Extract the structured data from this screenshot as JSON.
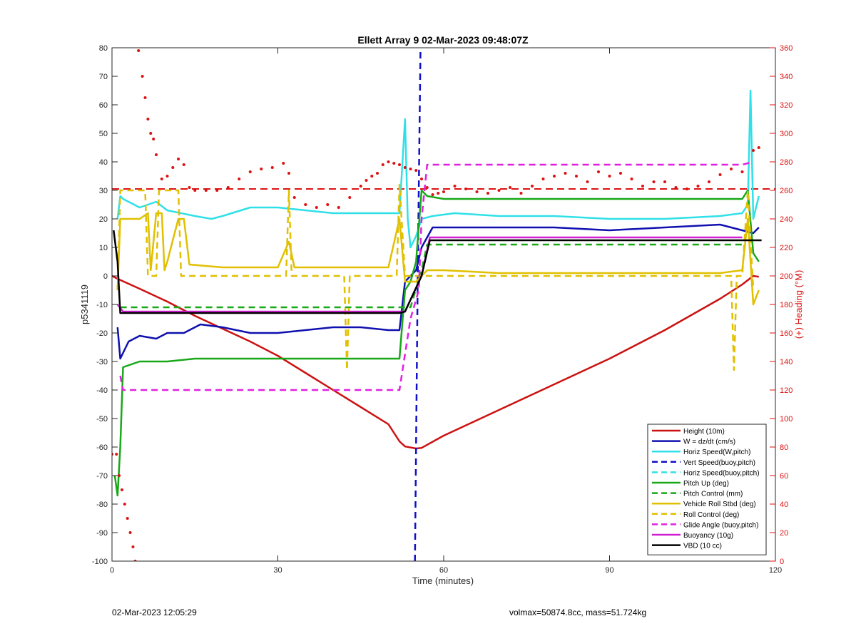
{
  "chart_data": {
    "type": "line",
    "title": "Ellett Array 9 02-Mar-2023 09:48:07Z",
    "xlabel": "Time (minutes)",
    "ylabel_left": "p5341119",
    "ylabel_right": "(+) Heading (°M)",
    "xlim": [
      0,
      120
    ],
    "ylim_left": [
      -100,
      80
    ],
    "ylim_right": [
      0,
      360
    ],
    "xticks": [
      0,
      30,
      60,
      90,
      120
    ],
    "yticks_left": [
      -100,
      -90,
      -80,
      -70,
      -60,
      -50,
      -40,
      -30,
      -20,
      -10,
      0,
      10,
      20,
      30,
      40,
      50,
      60,
      70,
      80
    ],
    "yticks_right": [
      0,
      20,
      40,
      60,
      80,
      100,
      120,
      140,
      160,
      180,
      200,
      220,
      240,
      260,
      280,
      300,
      320,
      340,
      360
    ],
    "grid": false,
    "legend_position": "bottom-right",
    "series": [
      {
        "name": "Height (10m)",
        "color": "#cc1111",
        "style": "solid",
        "axis": "left",
        "x": [
          0,
          1,
          5,
          10,
          15,
          20,
          25,
          30,
          35,
          40,
          45,
          50,
          52,
          53,
          55,
          56,
          60,
          70,
          80,
          90,
          100,
          110,
          114,
          116,
          117
        ],
        "y": [
          0,
          -1,
          -4.5,
          -9,
          -14,
          -18.5,
          -23,
          -28,
          -34,
          -40,
          -46,
          -52,
          -58,
          -59.8,
          -60.5,
          -60.3,
          -56,
          -47,
          -38,
          -29,
          -19,
          -8,
          -3,
          0,
          -0.3
        ]
      },
      {
        "name": "W = dz/dt (cm/s)",
        "color": "#1010b0",
        "style": "solid",
        "axis": "left",
        "x": [
          1,
          1.5,
          3,
          5,
          8,
          10,
          13,
          16,
          20,
          25,
          30,
          35,
          40,
          45,
          50,
          52,
          53,
          55,
          56,
          58,
          62,
          70,
          80,
          90,
          100,
          110,
          114,
          116,
          117
        ],
        "y": [
          -18,
          -29,
          -23,
          -21,
          -22,
          -20,
          -20,
          -17,
          -18,
          -20,
          -20,
          -19,
          -18,
          -18,
          -19,
          -19,
          -2,
          2,
          10,
          17,
          17,
          17,
          17,
          16,
          17,
          18,
          16,
          15,
          17
        ]
      },
      {
        "name": "Horiz Speed(W,pitch)",
        "color": "#30e0e8",
        "style": "solid",
        "axis": "left",
        "x": [
          1,
          1.5,
          2,
          5,
          8,
          10,
          15,
          18,
          20,
          25,
          30,
          35,
          40,
          45,
          50,
          52,
          53,
          53.5,
          54,
          55,
          56,
          58,
          62,
          70,
          80,
          90,
          100,
          110,
          114,
          115,
          115.5,
          116,
          117
        ],
        "y": [
          20,
          28,
          27,
          24,
          26,
          23,
          21,
          20,
          21,
          24,
          24,
          23,
          22,
          22,
          22,
          22,
          55,
          20,
          10,
          14,
          20,
          21,
          22,
          21,
          21,
          20,
          20,
          21,
          22,
          25,
          65,
          20,
          28
        ]
      },
      {
        "name": "Vert Speed(buoy,pitch)",
        "color": "#1010c8",
        "style": "dashed",
        "axis": "left",
        "x": [
          54.8,
          55.3,
          55.8
        ],
        "y": [
          -100,
          0,
          80
        ]
      },
      {
        "name": "Horiz Speed(buoy,pitch)",
        "color": "#30e0e8",
        "style": "dashed",
        "axis": "left",
        "x": [],
        "y": []
      },
      {
        "name": "Pitch Up (deg)",
        "color": "#18a818",
        "style": "solid",
        "axis": "left",
        "x": [
          0.5,
          1,
          1.5,
          2,
          5,
          10,
          15,
          20,
          25,
          30,
          40,
          50,
          52,
          53,
          54,
          55,
          56,
          57,
          60,
          70,
          80,
          90,
          100,
          110,
          114,
          115,
          116,
          117
        ],
        "y": [
          -70,
          -77,
          -60,
          -32,
          -30,
          -30,
          -29,
          -29,
          -29,
          -29,
          -29,
          -29,
          -29,
          -5,
          -2,
          5,
          30,
          28,
          27,
          27,
          27,
          27,
          27,
          27,
          27,
          30,
          8,
          5
        ]
      },
      {
        "name": "Pitch Control (mm)",
        "color": "#18a818",
        "style": "dashed",
        "axis": "left",
        "x": [
          1.5,
          10,
          20,
          30,
          40,
          50,
          54,
          56,
          57,
          60,
          70,
          80,
          90,
          100,
          110,
          114
        ],
        "y": [
          -11,
          -11,
          -11,
          -11,
          -11,
          -11,
          -11,
          2,
          11,
          11,
          11,
          11,
          11,
          11,
          11,
          11
        ]
      },
      {
        "name": "Vehicle Roll Stbd (deg)",
        "color": "#e0c000",
        "style": "solid",
        "axis": "left",
        "x": [
          1,
          1.5,
          2,
          5,
          6.5,
          7,
          8,
          9,
          9.5,
          10,
          12,
          13,
          14,
          20,
          30,
          32,
          33,
          35,
          40,
          50,
          52,
          53,
          55,
          57,
          60,
          70,
          80,
          90,
          100,
          110,
          114,
          115,
          116,
          117
        ],
        "y": [
          -5,
          20,
          20,
          20,
          22,
          2,
          22,
          22,
          2,
          5,
          20,
          20,
          4,
          3,
          3,
          12,
          3,
          3,
          3,
          3,
          20,
          -2,
          -2,
          2,
          2,
          1,
          1,
          1,
          1,
          1,
          2,
          20,
          -10,
          -5
        ]
      },
      {
        "name": "Roll Control (deg)",
        "color": "#e0c000",
        "style": "dashed",
        "axis": "left",
        "x": [
          1,
          1.5,
          2,
          6,
          6.5,
          7,
          8,
          8.5,
          12,
          12.5,
          13,
          20,
          31.5,
          32,
          32.5,
          40,
          42,
          42.5,
          43,
          50,
          51.5,
          52,
          53,
          56,
          60,
          80,
          100,
          112,
          112.5,
          113,
          114,
          115,
          116
        ],
        "y": [
          -5,
          30,
          30,
          30,
          0,
          0,
          0,
          30,
          30,
          0,
          0,
          0,
          0,
          30,
          0,
          0,
          0,
          -33,
          0,
          0,
          0,
          32,
          0,
          0,
          0,
          0,
          0,
          0,
          -33,
          0,
          0,
          30,
          -5
        ]
      },
      {
        "name": "Glide Angle (buoy,pitch)",
        "color": "#e020e0",
        "style": "dashed",
        "axis": "left",
        "x": [
          1.5,
          2,
          5,
          10,
          15,
          20,
          30,
          40,
          50,
          52,
          54,
          55.5,
          56,
          57,
          60,
          70,
          80,
          90,
          100,
          110,
          114,
          116
        ],
        "y": [
          -35,
          -40,
          -40,
          -40,
          -40,
          -40,
          -40,
          -40,
          -40,
          -40,
          -15,
          -5,
          20,
          39,
          39,
          39,
          39,
          39,
          39,
          39,
          39,
          40
        ]
      },
      {
        "name": "Buoyancy (10g)",
        "color": "#d020d0",
        "style": "solid",
        "axis": "left",
        "x": [
          1,
          2,
          10,
          20,
          30,
          40,
          50,
          53,
          56,
          57.5,
          60,
          70,
          80,
          90,
          100,
          110,
          114
        ],
        "y": [
          -10,
          -12.5,
          -12.5,
          -12.5,
          -12.5,
          -12.5,
          -12.5,
          -12.5,
          0,
          13.5,
          13.5,
          13.5,
          13.5,
          13.5,
          13.5,
          13.5,
          13.5
        ]
      },
      {
        "name": "VBD (10 cc)",
        "color": "#000000",
        "style": "solid",
        "axis": "left",
        "x": [
          0.3,
          1,
          1.5,
          10,
          20,
          30,
          40,
          50,
          52,
          53,
          56,
          57.5,
          60,
          70,
          80,
          90,
          100,
          110,
          114,
          116,
          117.5
        ],
        "y": [
          16,
          5,
          -13,
          -13,
          -13,
          -13,
          -13,
          -13,
          -13,
          -12.5,
          0,
          12.5,
          12.5,
          12.5,
          12.5,
          12.5,
          12.5,
          12.5,
          12.5,
          12.5,
          12.5
        ]
      }
    ],
    "heading": {
      "color": "#dd1111",
      "reference": 261,
      "x": [
        0,
        0.8,
        1.3,
        1.8,
        2.3,
        2.8,
        3.3,
        3.8,
        4.2,
        4.8,
        5.5,
        6,
        6.5,
        7,
        7.5,
        8,
        9,
        10,
        11,
        12,
        13,
        14,
        15,
        17,
        19,
        21,
        23,
        25,
        27,
        29,
        31,
        32,
        33,
        35,
        37,
        39,
        41,
        43,
        45,
        46,
        47,
        48,
        49,
        50,
        51,
        52,
        53,
        54,
        55,
        56,
        57,
        58,
        59,
        60,
        62,
        64,
        66,
        68,
        70,
        72,
        74,
        76,
        78,
        80,
        82,
        84,
        86,
        88,
        90,
        92,
        94,
        96,
        98,
        100,
        102,
        104,
        106,
        108,
        110,
        112,
        114,
        116,
        117
      ],
      "y": [
        75,
        75,
        60,
        50,
        40,
        30,
        20,
        10,
        0,
        358,
        340,
        325,
        310,
        300,
        296,
        285,
        268,
        270,
        276,
        282,
        278,
        262,
        260,
        260,
        260,
        262,
        268,
        273,
        275,
        276,
        279,
        272,
        255,
        250,
        248,
        250,
        248,
        255,
        263,
        267,
        270,
        272,
        278,
        280,
        279,
        278,
        276,
        275,
        274,
        268,
        262,
        257,
        258,
        259,
        263,
        261,
        259,
        258,
        260,
        262,
        258,
        263,
        268,
        270,
        272,
        270,
        266,
        273,
        270,
        272,
        268,
        263,
        266,
        266,
        262,
        261,
        263,
        266,
        271,
        275,
        273,
        288,
        290
      ]
    }
  },
  "footer": {
    "left": "02-Mar-2023 12:05:29",
    "right": "volmax=50874.8cc, mass=51.724kg"
  }
}
